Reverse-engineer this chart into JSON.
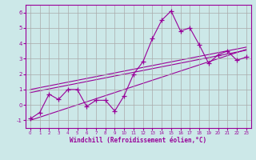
{
  "xlabel": "Windchill (Refroidissement éolien,°C)",
  "bg_color": "#cce8e8",
  "line_color": "#990099",
  "grid_color": "#aaaaaa",
  "xlim": [
    -0.5,
    23.5
  ],
  "ylim": [
    -1.5,
    6.5
  ],
  "xticks": [
    0,
    1,
    2,
    3,
    4,
    5,
    6,
    7,
    8,
    9,
    10,
    11,
    12,
    13,
    14,
    15,
    16,
    17,
    18,
    19,
    20,
    21,
    22,
    23
  ],
  "yticks": [
    -1,
    0,
    1,
    2,
    3,
    4,
    5,
    6
  ],
  "data_x": [
    0,
    1,
    2,
    3,
    4,
    5,
    6,
    7,
    8,
    9,
    10,
    11,
    12,
    13,
    14,
    15,
    16,
    17,
    18,
    19,
    20,
    21,
    22,
    23
  ],
  "data_y": [
    -0.9,
    -0.5,
    0.7,
    0.35,
    1.0,
    1.0,
    -0.1,
    0.3,
    0.3,
    -0.4,
    0.6,
    2.0,
    2.8,
    4.3,
    5.5,
    6.1,
    4.8,
    5.0,
    3.9,
    2.7,
    3.25,
    3.5,
    2.9,
    3.1
  ],
  "trend_lines": [
    {
      "x0": 0,
      "y0": -1.0,
      "x1": 23,
      "y1": 3.6
    },
    {
      "x0": 0,
      "y0": 0.8,
      "x1": 23,
      "y1": 3.55
    },
    {
      "x0": 0,
      "y0": 1.0,
      "x1": 23,
      "y1": 3.75
    }
  ]
}
